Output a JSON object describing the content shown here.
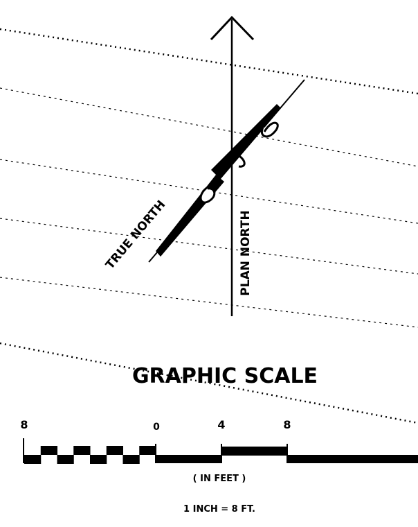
{
  "north_arrow": {
    "true_north": "TRUE NORTH",
    "plan_north": "PLAN NORTH"
  },
  "graphic_scale": {
    "title": "GRAPHIC SCALE",
    "labels": [
      "8",
      "0",
      "4",
      "8"
    ],
    "units": "( IN FEET )",
    "ratio": "1 INCH = 8 FT."
  }
}
